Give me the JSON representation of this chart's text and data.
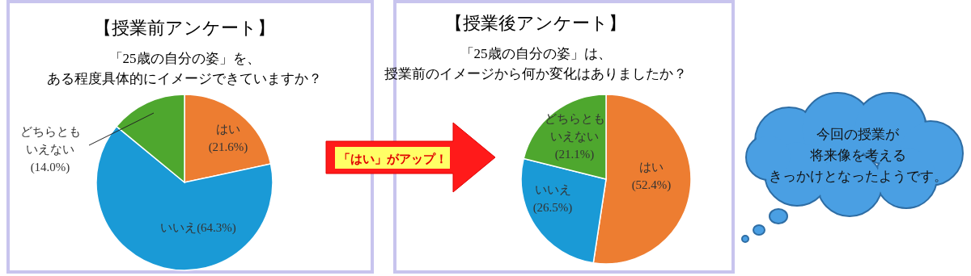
{
  "chart_data": [
    {
      "type": "pie",
      "title": "【授業前アンケート】",
      "subtitle": "「25歳の自分の姿」を、ある程度具体的にイメージできていますか？",
      "categories": [
        "はい",
        "いいえ",
        "どちらともいえない"
      ],
      "values": [
        21.6,
        64.3,
        14.0
      ],
      "value_labels": [
        "(21.6%)",
        "(64.3%)",
        "(14.0%)"
      ],
      "colors": [
        "#ed7d31",
        "#1a9ad6",
        "#4ea72e"
      ]
    },
    {
      "type": "pie",
      "title": "【授業後アンケート】",
      "subtitle": "「25歳の自分の姿」は、授業前のイメージから何か変化はありましたか？",
      "categories": [
        "はい",
        "いいえ",
        "どちらともいえない"
      ],
      "values": [
        52.4,
        26.5,
        21.1
      ],
      "value_labels": [
        "(52.4%)",
        "(26.5%)",
        "(21.1%)"
      ],
      "colors": [
        "#ed7d31",
        "#1a9ad6",
        "#4ea72e"
      ]
    },
    {
      "type": "other",
      "annotations": [
        "「はい」がアップ！"
      ]
    },
    {
      "type": "other",
      "annotations": [
        "今回の授業が将来像を考えるきっかけとなったようです。"
      ]
    }
  ]
}
